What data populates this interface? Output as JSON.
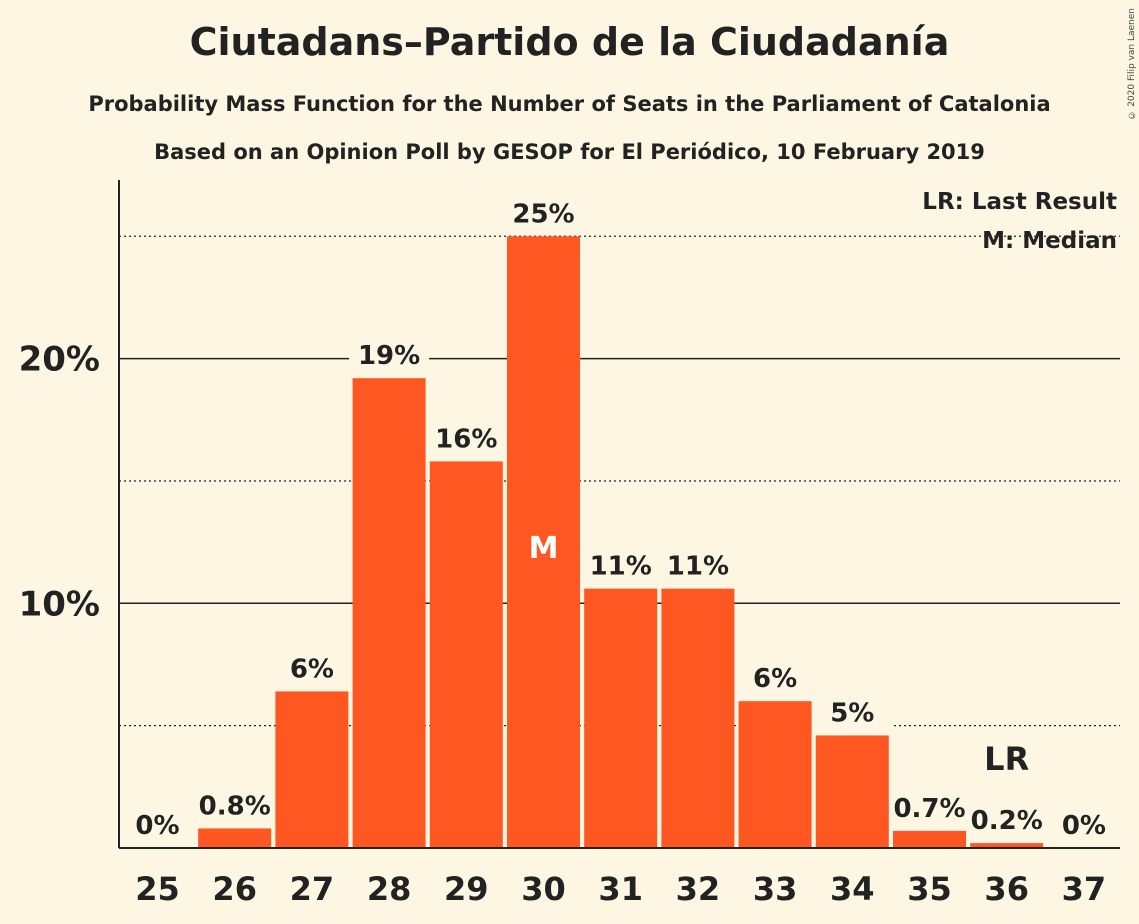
{
  "chart_data": {
    "type": "bar",
    "title": "Ciutadans–Partido de la Ciudadanía",
    "subtitle": "Probability Mass Function for the Number of Seats in the Parliament of Catalonia",
    "subtitle2": "Based on an Opinion Poll by GESOP for El Periódico, 10 February 2019",
    "copyright": "© 2020 Filip van Laenen",
    "categories": [
      "25",
      "26",
      "27",
      "28",
      "29",
      "30",
      "31",
      "32",
      "33",
      "34",
      "35",
      "36",
      "37"
    ],
    "values": [
      0,
      0.8,
      6.4,
      19.2,
      15.8,
      25.0,
      10.6,
      10.6,
      6.0,
      4.6,
      0.7,
      0.2,
      0
    ],
    "value_labels": [
      "0%",
      "0.8%",
      "6%",
      "19%",
      "16%",
      "25%",
      "11%",
      "11%",
      "6%",
      "5%",
      "0.7%",
      "0.2%",
      "0%"
    ],
    "y_ticks": [
      {
        "value": 10,
        "label": "10%"
      },
      {
        "value": 20,
        "label": "20%"
      }
    ],
    "y_minor_gridlines": [
      5,
      15,
      25
    ],
    "ylim": [
      0,
      27.3
    ],
    "median_category": "30",
    "median_marker": "M",
    "last_result_category": "36",
    "last_result_marker": "LR",
    "legend": [
      "LR: Last Result",
      "M: Median"
    ],
    "legend_position": "top-right",
    "bar_color": "#ff5722",
    "background_color": "#fdf6e3"
  }
}
